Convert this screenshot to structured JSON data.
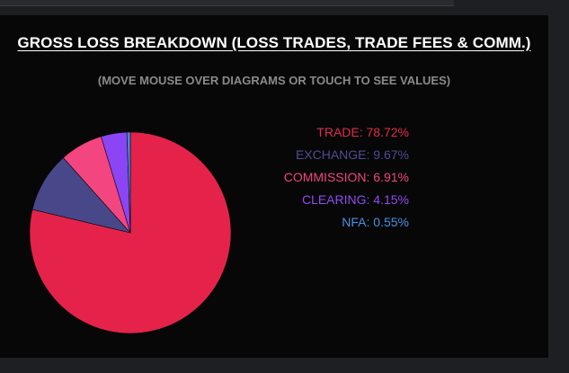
{
  "chart_data": {
    "type": "pie",
    "title": "GROSS LOSS BREAKDOWN (LOSS TRADES, TRADE FEES & COMM.)",
    "subtitle": "(MOVE MOUSE OVER DIAGRAMS OR TOUCH TO SEE VALUES)",
    "legend_position": "right",
    "slices": [
      {
        "label": "TRADE",
        "value": 78.72,
        "text": "TRADE: 78.72%",
        "color": "#e5234a",
        "legend_color": "#e02c48"
      },
      {
        "label": "EXCHANGE",
        "value": 9.67,
        "text": "EXCHANGE: 9.67%",
        "color": "#48478a",
        "legend_color": "#4f4b94"
      },
      {
        "label": "COMMISSION",
        "value": 6.91,
        "text": "COMMISSION: 6.91%",
        "color": "#f3457f",
        "legend_color": "#f0467d"
      },
      {
        "label": "CLEARING",
        "value": 4.15,
        "text": "CLEARING: 4.15%",
        "color": "#8b45f5",
        "legend_color": "#8e4bf0"
      },
      {
        "label": "NFA",
        "value": 0.55,
        "text": "NFA: 0.55%",
        "color": "#3d8be6",
        "legend_color": "#4a90e2"
      }
    ]
  }
}
